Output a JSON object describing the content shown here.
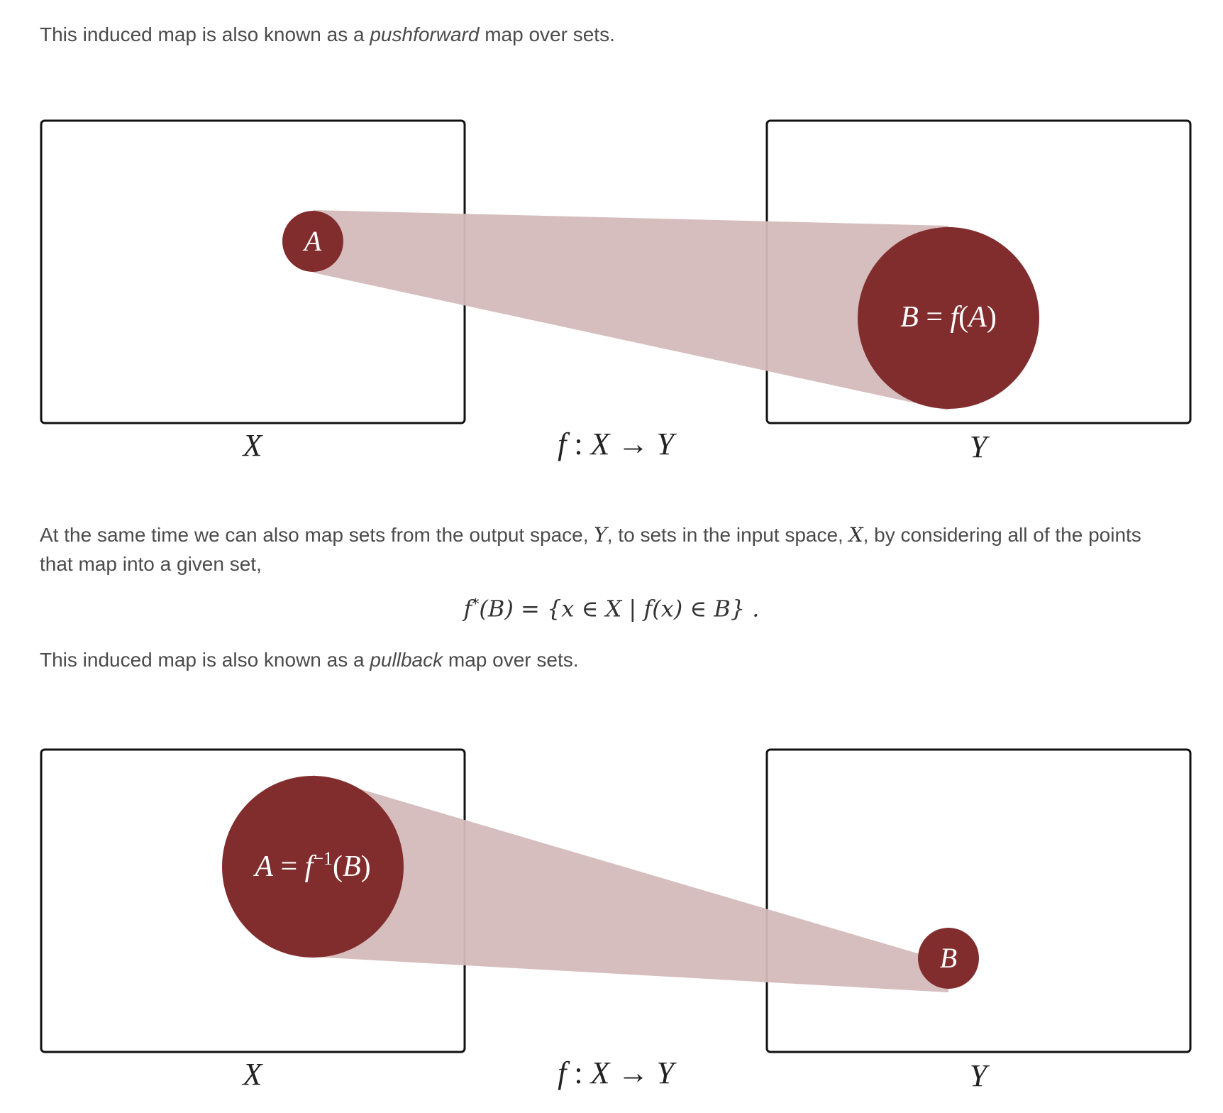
{
  "colors": {
    "circle_fill": "#822d2d",
    "beam_fill": "#d4bbbb",
    "box_stroke": "#111111",
    "text": "#4b4b4b"
  },
  "intro": {
    "before": "This induced map is also known as a ",
    "emph": "pushforward",
    "after": " map over sets."
  },
  "pushforward_figure": {
    "domain_label": "X",
    "codomain_label": "Y",
    "map_label_f": "f",
    "map_label_colon": " : ",
    "map_label_X": "X",
    "map_label_arrow": " → ",
    "map_label_Y": "Y",
    "small_set_label": "A",
    "large_set_label_B": "B",
    "large_set_label_eq": " = ",
    "large_set_label_f": "f",
    "large_set_label_open": "(",
    "large_set_label_A": "A",
    "large_set_label_close": ")"
  },
  "middle": {
    "p1": "At the same time we can also map sets from the output space, ",
    "Y": "Y",
    "p2": ", to sets in the input space, ",
    "X": "X",
    "p3": ", by considering all of the points that map into a given set,"
  },
  "equation": {
    "f": "f",
    "star": "*",
    "lhs_rest": "(B) = {x ∈ X | f(x) ∈ B} ."
  },
  "outro": {
    "before": "This induced map is also known as a ",
    "emph": "pullback",
    "after": " map over sets."
  },
  "pullback_figure": {
    "domain_label": "X",
    "codomain_label": "Y",
    "map_label_f": "f",
    "map_label_colon": " : ",
    "map_label_X": "X",
    "map_label_arrow": " → ",
    "map_label_Y": "Y",
    "large_set_label_A": "A",
    "large_set_label_eq": " = ",
    "large_set_label_f": "f",
    "large_set_label_sup": "−1",
    "large_set_label_open": "(",
    "large_set_label_B": "B",
    "large_set_label_close": ")",
    "small_set_label": "B"
  }
}
